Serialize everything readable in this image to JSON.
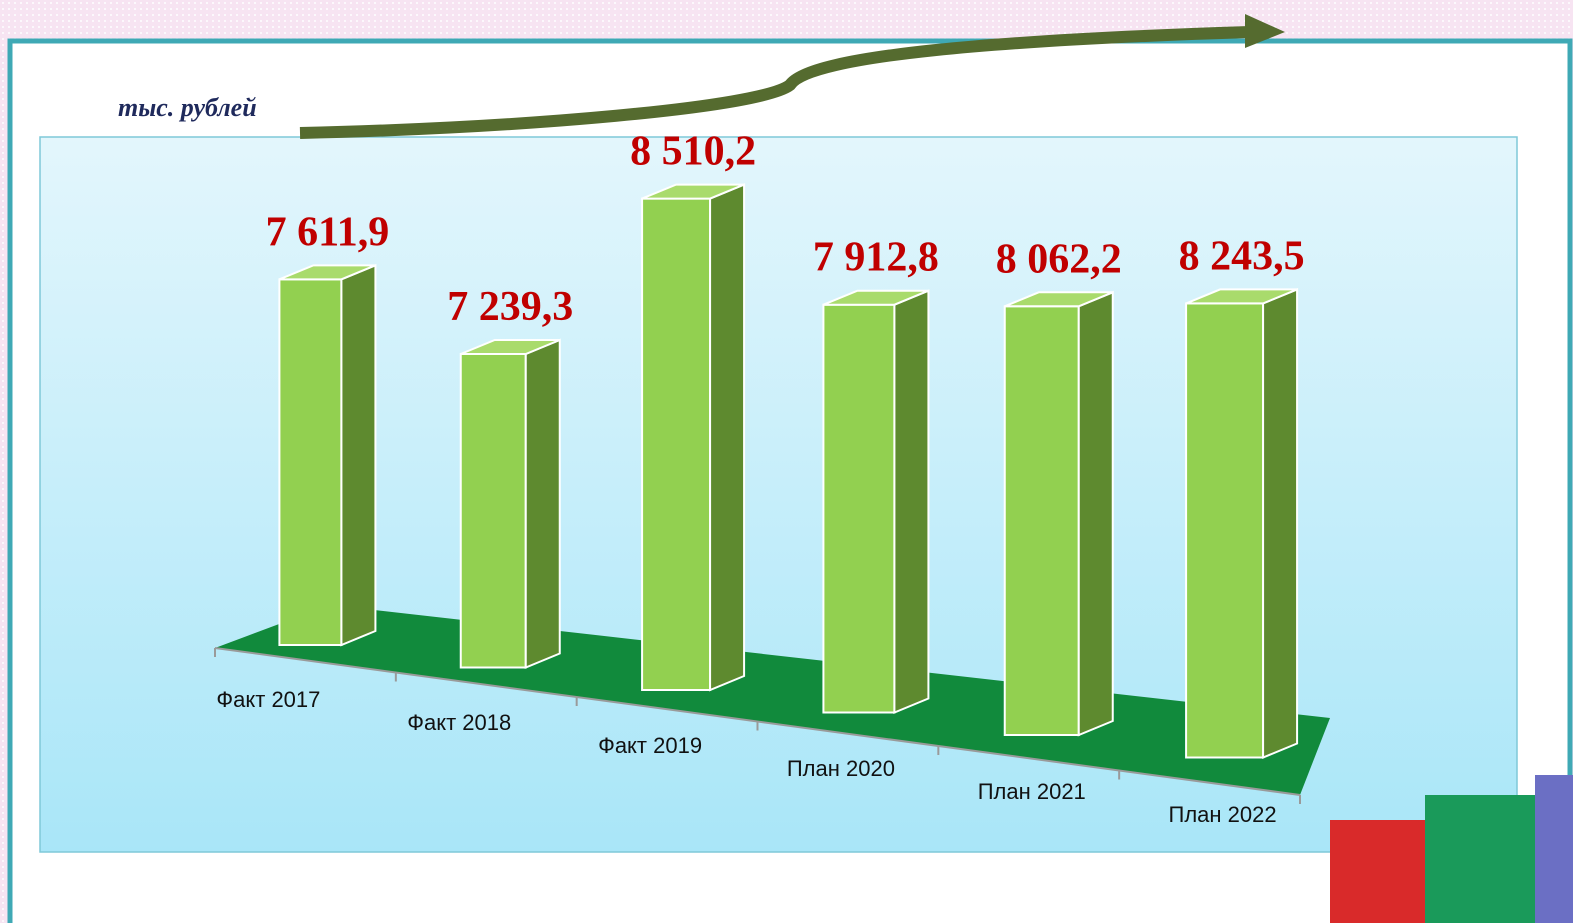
{
  "chart_data": {
    "type": "bar3d",
    "unit": "тыс. рублей",
    "categories": [
      "Факт 2017",
      "Факт 2018",
      "Факт 2019",
      "План 2020",
      "План 2021",
      "План 2022"
    ],
    "values": [
      7611.9,
      7239.3,
      8510.2,
      7912.8,
      8062.2,
      8243.5
    ],
    "value_labels": [
      "7 611,9",
      "7 239,3",
      "8 510,2",
      "7 912,8",
      "8 062,2",
      "8 243,5"
    ],
    "color": "#92d050",
    "side_color": "#5e8a2f",
    "top_color": "#a9db6c",
    "ylim": [
      5000,
      9000
    ]
  }
}
